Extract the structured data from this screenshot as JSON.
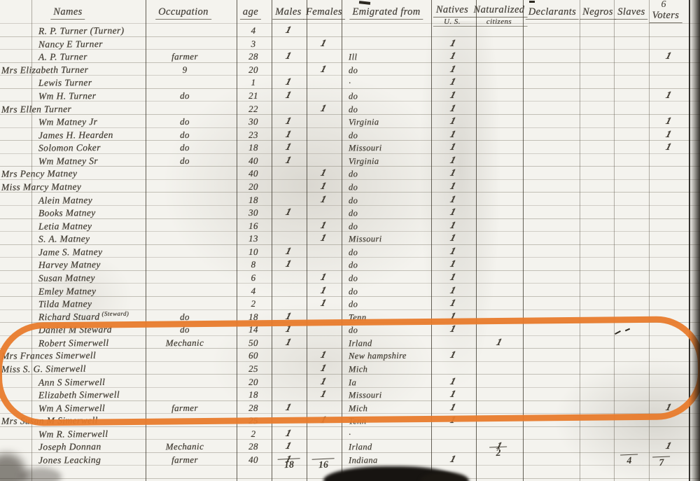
{
  "page_number": "6",
  "document_type": "handwritten census register page",
  "ink_color": "#3f3b34",
  "annotation": {
    "type": "hand-drawn oval highlight",
    "color": "#e87b2c",
    "rows_highlighted": "Simerwell family entries (rows 25-31)"
  },
  "header": {
    "columns": [
      {
        "key": "name",
        "label": "Names"
      },
      {
        "key": "occupation",
        "label": "Occupation"
      },
      {
        "key": "age",
        "label": "age"
      },
      {
        "key": "male",
        "label": "Males"
      },
      {
        "key": "female",
        "label": "Females"
      },
      {
        "key": "from",
        "label": "Emigrated from"
      },
      {
        "key": "native",
        "label": "Natives",
        "label2": "U. S."
      },
      {
        "key": "naturalized",
        "label": "Naturalized",
        "label2": "citizens"
      },
      {
        "key": "declarant",
        "label": "Declarants"
      },
      {
        "key": "negros",
        "label": "Negros"
      },
      {
        "key": "slaves",
        "label": "Slaves"
      },
      {
        "key": "voter",
        "label": "Voters"
      }
    ]
  },
  "rows": [
    {
      "name": "R. P. Turner (Turner)",
      "age": "4",
      "male": "1"
    },
    {
      "name": "Nancy E Turner",
      "age": "3",
      "female": "1",
      "native": "1"
    },
    {
      "name": "A. P. Turner",
      "occupation": "farmer",
      "age": "28",
      "male": "1",
      "from": "Ill",
      "native": "1",
      "voter": "1"
    },
    {
      "name": "Mrs Elizabeth Turner",
      "occupation": "9",
      "age": "20",
      "female": "1",
      "from": "do",
      "native": "1"
    },
    {
      "name": "Lewis Turner",
      "age": "1",
      "male": "1",
      "from": "·",
      "native": "1"
    },
    {
      "name": "Wm H. Turner",
      "occupation": "do",
      "age": "21",
      "male": "1",
      "from": "do",
      "native": "1",
      "voter": "1"
    },
    {
      "name": "Mrs Ellen Turner",
      "age": "22",
      "female": "1",
      "from": "do",
      "native": "1"
    },
    {
      "name": "Wm Matney Jr",
      "occupation": "do",
      "age": "30",
      "male": "1",
      "from": "Virginia",
      "native": "1",
      "voter": "1"
    },
    {
      "name": "James H. Hearden",
      "occupation": "do",
      "age": "23",
      "male": "1",
      "from": "do",
      "native": "1",
      "voter": "1"
    },
    {
      "name": "Solomon Coker",
      "occupation": "do",
      "age": "18",
      "male": "1",
      "from": "Missouri",
      "native": "1",
      "voter": "1"
    },
    {
      "name": "Wm Matney Sr",
      "occupation": "do",
      "age": "40",
      "male": "1",
      "from": "Virginia",
      "native": "1"
    },
    {
      "name": "Mrs Pency Matney",
      "age": "40",
      "female": "1",
      "from": "do",
      "native": "1"
    },
    {
      "name": "Miss Marcy Matney",
      "age": "20",
      "female": "1",
      "from": "do",
      "native": "1"
    },
    {
      "name": "Alein Matney",
      "age": "18",
      "female": "1",
      "from": "do",
      "native": "1"
    },
    {
      "name": "Books Matney",
      "age": "30",
      "male": "1",
      "from": "do",
      "native": "1"
    },
    {
      "name": "Letia Matney",
      "age": "16",
      "female": "1",
      "from": "do",
      "native": "1"
    },
    {
      "name": "S. A. Matney",
      "age": "13",
      "female": "1",
      "from": "Missouri",
      "native": "1"
    },
    {
      "name": "Jame S. Matney",
      "age": "10",
      "male": "1",
      "from": "do",
      "native": "1"
    },
    {
      "name": "Harvey Matney",
      "age": "8",
      "male": "1",
      "from": "do",
      "native": "1"
    },
    {
      "name": "Susan Matney",
      "age": "6",
      "female": "1",
      "from": "do",
      "native": "1"
    },
    {
      "name": "Emley Matney",
      "age": "4",
      "female": "1",
      "from": "do",
      "native": "1"
    },
    {
      "name": "Tilda Matney",
      "age": "2",
      "female": "1",
      "from": "do",
      "native": "1"
    },
    {
      "name": "Richard Stuard",
      "note": "(Steward)",
      "occupation": "do",
      "age": "18",
      "male": "1",
      "from": "Tenn",
      "native": "1"
    },
    {
      "name": "Daniel M Steward",
      "occupation": "do",
      "age": "14",
      "male": "1",
      "from": "do",
      "native": "1"
    },
    {
      "name": "Robert Simerwell",
      "occupation": "Mechanic",
      "age": "50",
      "male": "1",
      "from": "Irland",
      "naturalized": "1"
    },
    {
      "name": "Mrs Frances Simerwell",
      "age": "60",
      "female": "1",
      "from": "New hampshire",
      "native": "1"
    },
    {
      "name": "Miss S. G. Simerwell",
      "age": "25",
      "female": "1",
      "from": "Mich"
    },
    {
      "name": "Ann S Simerwell",
      "age": "20",
      "female": "1",
      "from": "Ia",
      "native": "1"
    },
    {
      "name": "Elizabeth Simerwell",
      "age": "18",
      "female": "1",
      "from": "Missouri",
      "native": "1"
    },
    {
      "name": "Wm A Simerwell",
      "occupation": "farmer",
      "age": "28",
      "male": "1",
      "from": "Mich",
      "native": "1",
      "voter": "1"
    },
    {
      "name": "Mrs Susan M Simerwell",
      "age": "25",
      "female": "1",
      "from": "Tenn",
      "native": "1"
    },
    {
      "name": "Wm R. Simerwell",
      "age": "2",
      "male": "1",
      "from": "·"
    },
    {
      "name": "Joseph Donnan",
      "occupation": "Mechanic",
      "age": "28",
      "male": "1",
      "from": "Irland",
      "naturalized": "1",
      "voter": "1"
    },
    {
      "name": "Jones Leacking",
      "occupation": "farmer",
      "age": "40",
      "male": "1",
      "from": "Indiana",
      "native": "1"
    }
  ],
  "totals": {
    "male": "18",
    "female": "16",
    "naturalized": "2",
    "slaves": "4",
    "voter": "7"
  }
}
